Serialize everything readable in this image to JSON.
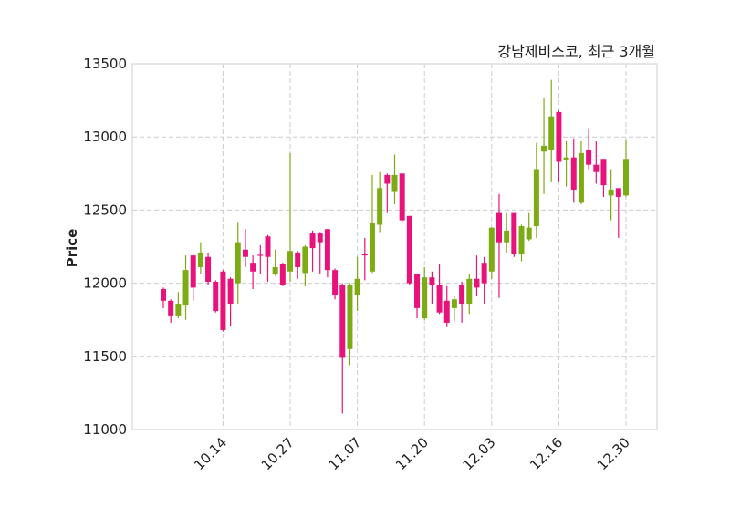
{
  "chart_data": {
    "type": "candlestick",
    "title": "강남제비스코, 최근 3개월",
    "xlabel": "",
    "ylabel": "Price",
    "ylim": [
      11000,
      13500
    ],
    "yticks": [
      11000,
      11500,
      12000,
      12500,
      13000,
      13500
    ],
    "xtick_labels": [
      {
        "index": 8,
        "label": "10.14"
      },
      {
        "index": 17,
        "label": "10.27"
      },
      {
        "index": 26,
        "label": "11.07"
      },
      {
        "index": 35,
        "label": "11.20"
      },
      {
        "index": 44,
        "label": "12.03"
      },
      {
        "index": 53,
        "label": "12.16"
      },
      {
        "index": 62,
        "label": "12.30"
      }
    ],
    "grid": true,
    "colors": {
      "up": "#7cab14",
      "down": "#e8137a",
      "grid": "#cccccc",
      "spine": "#dddddd"
    },
    "ohlc_fields": [
      "open",
      "high",
      "low",
      "close"
    ],
    "ohlc": [
      [
        11960,
        11970,
        11830,
        11880
      ],
      [
        11880,
        11890,
        11730,
        11780
      ],
      [
        11780,
        11940,
        11760,
        11860
      ],
      [
        11850,
        12190,
        11750,
        12090
      ],
      [
        12190,
        12200,
        11880,
        11970
      ],
      [
        12110,
        12280,
        12060,
        12210
      ],
      [
        12180,
        12210,
        11990,
        12010
      ],
      [
        12010,
        12020,
        11800,
        11810
      ],
      [
        12080,
        12090,
        11670,
        11680
      ],
      [
        12030,
        12040,
        11710,
        11860
      ],
      [
        12000,
        12420,
        11860,
        12280
      ],
      [
        12230,
        12370,
        12110,
        12180
      ],
      [
        12140,
        12190,
        11960,
        12080
      ],
      [
        12195,
        12260,
        12060,
        12190
      ],
      [
        12320,
        12330,
        12010,
        12180
      ],
      [
        12060,
        12230,
        12050,
        12110
      ],
      [
        12130,
        12140,
        11980,
        11990
      ],
      [
        12080,
        12890,
        12010,
        12220
      ],
      [
        12210,
        12220,
        12030,
        12110
      ],
      [
        12070,
        12260,
        11980,
        12250
      ],
      [
        12340,
        12360,
        12080,
        12240
      ],
      [
        12340,
        12350,
        12060,
        12280
      ],
      [
        12370,
        12370,
        12040,
        12090
      ],
      [
        12090,
        12100,
        11890,
        11920
      ],
      [
        11990,
        12000,
        11110,
        11490
      ],
      [
        11550,
        12000,
        11440,
        11990
      ],
      [
        11920,
        12180,
        11810,
        12030
      ],
      [
        12200,
        12310,
        12020,
        12190
      ],
      [
        12080,
        12740,
        12070,
        12410
      ],
      [
        12400,
        12760,
        12350,
        12650
      ],
      [
        12740,
        12750,
        12480,
        12680
      ],
      [
        12630,
        12880,
        12540,
        12740
      ],
      [
        12750,
        12750,
        12410,
        12430
      ],
      [
        12460,
        12460,
        11990,
        12000
      ],
      [
        12060,
        12060,
        11760,
        11830
      ],
      [
        11760,
        12110,
        11750,
        12040
      ],
      [
        12040,
        12080,
        11860,
        11990
      ],
      [
        11990,
        12130,
        11790,
        11800
      ],
      [
        11880,
        11980,
        11700,
        11730
      ],
      [
        11830,
        11910,
        11740,
        11890
      ],
      [
        11990,
        12010,
        11730,
        11860
      ],
      [
        11860,
        12060,
        11790,
        12030
      ],
      [
        12030,
        12190,
        11910,
        11970
      ],
      [
        12140,
        12180,
        11860,
        12000
      ],
      [
        12080,
        12380,
        12030,
        12380
      ],
      [
        12480,
        12610,
        11900,
        12280
      ],
      [
        12280,
        12480,
        12210,
        12360
      ],
      [
        12480,
        12480,
        12180,
        12200
      ],
      [
        12200,
        12400,
        12150,
        12390
      ],
      [
        12300,
        12480,
        12290,
        12380
      ],
      [
        12390,
        12960,
        12310,
        12780
      ],
      [
        12900,
        13270,
        12610,
        12940
      ],
      [
        12910,
        13390,
        12690,
        13140
      ],
      [
        13170,
        13180,
        12690,
        12830
      ],
      [
        12840,
        12970,
        12660,
        12860
      ],
      [
        12860,
        12990,
        12550,
        12640
      ],
      [
        12550,
        12970,
        12540,
        12890
      ],
      [
        12910,
        13060,
        12780,
        12810
      ],
      [
        12810,
        12970,
        12680,
        12760
      ],
      [
        12850,
        12850,
        12590,
        12670
      ],
      [
        12600,
        12780,
        12430,
        12640
      ],
      [
        12650,
        12650,
        12310,
        12590
      ],
      [
        12600,
        12980,
        12590,
        12850
      ]
    ]
  }
}
